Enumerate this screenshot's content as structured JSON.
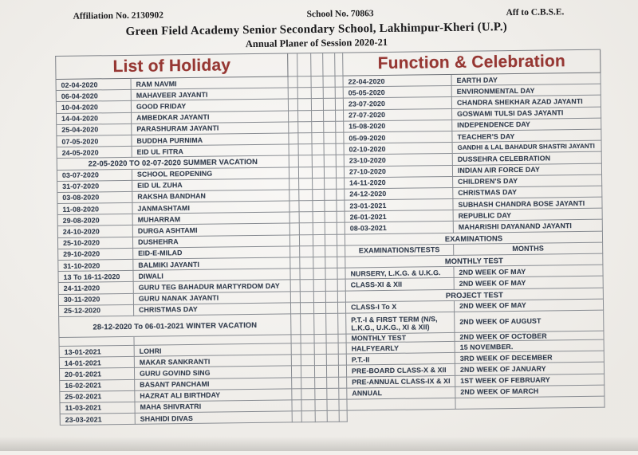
{
  "header": {
    "affiliation": "Affiliation No. 2130902",
    "school_no": "School No. 70863",
    "aff_to": "Aff to C.B.S.E.",
    "school_name": "Green  Field Academy  Senior Secondary School, Lakhimpur-Kheri (U.P.)",
    "subtitle": "Annual Planer of Session 2020-21"
  },
  "colors": {
    "title_red": "#963733",
    "ink_navy": "#333e4f",
    "border_gray": "#888c92",
    "paper": "#f2f0ec"
  },
  "holiday_table": {
    "title": "List of Holiday",
    "rows": [
      {
        "date": "02-04-2020",
        "name": "RAM NAVMI"
      },
      {
        "date": "06-04-2020",
        "name": "MAHAVEER JAYANTI"
      },
      {
        "date": "10-04-2020",
        "name": "GOOD FRIDAY"
      },
      {
        "date": "14-04-2020",
        "name": "AMBEDKAR JAYANTI"
      },
      {
        "date": "25-04-2020",
        "name": "PARASHURAM JAYANTI"
      },
      {
        "date": "07-05-2020",
        "name": "BUDDHA PURNIMA"
      },
      {
        "date": "24-05-2020",
        "name": "EID UL FITRA"
      },
      {
        "span": "22-05-2020 TO 02-07-2020 SUMMER VACATION"
      },
      {
        "date": "03-07-2020",
        "name": "SCHOOL REOPENING"
      },
      {
        "date": "31-07-2020",
        "name": "EID UL ZUHA"
      },
      {
        "date": "03-08-2020",
        "name": "RAKSHA BANDHAN"
      },
      {
        "date": "11-08-2020",
        "name": "JANMASHTAMI"
      },
      {
        "date": "29-08-2020",
        "name": "MUHARRAM"
      },
      {
        "date": "24-10-2020",
        "name": "DURGA ASHTAMI"
      },
      {
        "date": "25-10-2020",
        "name": "DUSHEHRA"
      },
      {
        "date": "29-10-2020",
        "name": "EID-E-MILAD"
      },
      {
        "date": "31-10-2020",
        "name": "BALMIKI JAYANTI"
      },
      {
        "date": "13 To 16-11-2020",
        "name": "DIWALI"
      },
      {
        "date": "24-11-2020",
        "name": "GURU TEG BAHADUR MARTYRDOM DAY"
      },
      {
        "date": "30-11-2020",
        "name": "GURU NANAK JAYANTI"
      },
      {
        "date": "25-12-2020",
        "name": "CHRISTMAS DAY"
      },
      {
        "span": "28-12-2020 To 06-01-2021 WINTER VACATION"
      },
      {
        "blank": true
      },
      {
        "date": "13-01-2021",
        "name": "LOHRI"
      },
      {
        "date": "14-01-2021",
        "name": "MAKAR SANKRANTI"
      },
      {
        "date": "20-01-2021",
        "name": "GURU GOVIND SING"
      },
      {
        "date": "16-02-2021",
        "name": "BASANT PANCHAMI"
      },
      {
        "date": "25-02-2021",
        "name": "HAZRAT ALI BIRTHDAY"
      },
      {
        "date": "11-03-2021",
        "name": "MAHA SHIVRATRI"
      },
      {
        "date": "23-03-2021",
        "name": "SHAHIDI DIVAS"
      }
    ]
  },
  "function_table": {
    "title": "Function & Celebration",
    "rows": [
      {
        "date": "22-04-2020",
        "name": "EARTH DAY"
      },
      {
        "date": "05-05-2020",
        "name": "ENVIRONMENTAL DAY"
      },
      {
        "date": "23-07-2020",
        "name": "CHANDRA SHEKHAR AZAD JAYANTI"
      },
      {
        "date": "27-07-2020",
        "name": "GOSWAMI TULSI DAS JAYANTI"
      },
      {
        "date": "15-08-2020",
        "name": "INDEPENDENCE DAY"
      },
      {
        "date": "05-09-2020",
        "name": "TEACHER'S DAY"
      },
      {
        "date": "02-10-2020",
        "name": "GANDHI & LAL BAHADUR SHASTRI JAYANTI"
      },
      {
        "date": "23-10-2020",
        "name": "DUSSEHRA CELEBRATION"
      },
      {
        "date": "27-10-2020",
        "name": "INDIAN AIR FORCE DAY"
      },
      {
        "date": "14-11-2020",
        "name": "CHILDREN'S DAY"
      },
      {
        "date": "24-12-2020",
        "name": "CHRISTMAS DAY"
      },
      {
        "date": "23-01-2021",
        "name": "SUBHASH CHANDRA BOSE JAYANTI"
      },
      {
        "date": "26-01-2021",
        "name": "REPUBLIC DAY"
      },
      {
        "date": "08-03-2021",
        "name": "MAHARISHI DAYANAND JAYANTI"
      },
      {
        "span": "EXAMINATIONS"
      },
      {
        "head1": "EXAMINATIONS/TESTS",
        "head2": "MONTHS"
      },
      {
        "span": "MONTHLY TEST"
      },
      {
        "test": "NURSERY, L.K.G. & U.K.G.",
        "month": "2ND WEEK OF MAY"
      },
      {
        "test": "CLASS-XI & XII",
        "month": "2ND WEEK OF MAY"
      },
      {
        "span": "PROJECT TEST"
      },
      {
        "test": "CLASS-I To X",
        "month": "2ND WEEK OF MAY"
      },
      {
        "test": "P.T.-I & FIRST TERM (N/S, L.K.G., U.K.G., XI & XII)",
        "month": "2ND WEEK OF AUGUST"
      },
      {
        "test": "MONTHLY TEST",
        "month": "2ND WEEK OF OCTOBER"
      },
      {
        "test": "HALFYEARLY",
        "month": "15 NOVEMBER."
      },
      {
        "test": "P.T.-II",
        "month": "3RD WEEK OF DECEMBER"
      },
      {
        "test": "PRE-BOARD CLASS-X & XII",
        "month": "2ND WEEK OF JANUARY"
      },
      {
        "test": "PRE-ANNUAL CLASS-IX & XI",
        "month": "1ST WEEK OF FEBRUARY"
      },
      {
        "test": "ANNUAL",
        "month": "2ND WEEK OF MARCH"
      },
      {
        "blank": true
      },
      {
        "none": true
      }
    ]
  }
}
